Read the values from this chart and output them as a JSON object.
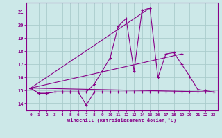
{
  "bg_color": "#cce8e8",
  "line_color": "#880088",
  "grid_color": "#aacccc",
  "xlabel": "Windchill (Refroidissement éolien,°C)",
  "tick_color": "#880088",
  "xlim": [
    -0.5,
    23.5
  ],
  "ylim": [
    13.5,
    21.7
  ],
  "yticks": [
    14,
    15,
    16,
    17,
    18,
    19,
    20,
    21
  ],
  "xticks": [
    0,
    1,
    2,
    3,
    4,
    5,
    6,
    7,
    8,
    9,
    10,
    11,
    12,
    13,
    14,
    15,
    16,
    17,
    18,
    19,
    20,
    21,
    22,
    23
  ],
  "lines": [
    {
      "x": [
        0,
        1,
        2,
        3,
        4,
        5,
        6,
        7,
        8,
        9,
        10,
        11,
        12,
        13,
        14,
        15,
        16,
        17,
        18,
        19,
        20,
        21,
        22,
        23
      ],
      "y": [
        15.2,
        14.8,
        14.8,
        14.9,
        14.9,
        14.9,
        14.9,
        13.9,
        14.9,
        14.9,
        14.9,
        14.9,
        14.9,
        14.9,
        14.9,
        14.9,
        14.9,
        14.9,
        14.9,
        14.9,
        14.9,
        14.9,
        14.9,
        14.9
      ]
    },
    {
      "x": [
        0,
        1,
        2,
        3,
        4,
        5,
        6,
        7,
        8,
        9,
        10,
        11,
        12,
        13,
        14,
        15,
        16,
        17,
        18,
        19,
        20,
        21,
        22,
        23
      ],
      "y": [
        15.2,
        14.8,
        14.8,
        14.9,
        14.9,
        14.9,
        14.9,
        14.9,
        15.5,
        16.5,
        17.5,
        19.9,
        20.5,
        16.5,
        21.1,
        21.3,
        16.0,
        17.8,
        17.9,
        17.0,
        16.1,
        15.1,
        15.0,
        14.9
      ]
    },
    {
      "comment": "straight line from (0,15.2) to (23,14.9)",
      "x": [
        0,
        23
      ],
      "y": [
        15.2,
        14.9
      ]
    },
    {
      "comment": "straight line from (0,15.2) to (19,17.8)",
      "x": [
        0,
        19
      ],
      "y": [
        15.2,
        17.8
      ]
    },
    {
      "comment": "straight line from (0,15.2) to (15,21.3)",
      "x": [
        0,
        15
      ],
      "y": [
        15.2,
        21.3
      ]
    }
  ]
}
